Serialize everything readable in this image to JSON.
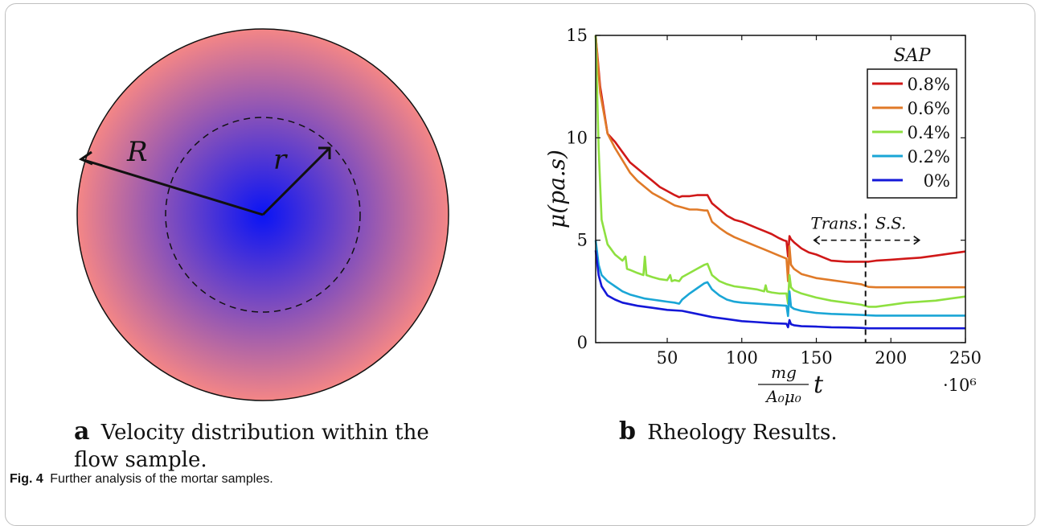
{
  "panel_a": {
    "letter": "a",
    "caption": "Velocity distribution within the flow sample.",
    "label_R": "R",
    "label_r": "r"
  },
  "panel_b": {
    "letter": "b",
    "caption": "Rheology Results."
  },
  "figure_caption": {
    "label": "Fig. 4",
    "text": "Further analysis of the mortar samples."
  },
  "colors": {
    "outer": "#f48686",
    "center": "#0a14f5",
    "s08": "#d01818",
    "s06": "#e07a28",
    "s04": "#8ee040",
    "s02": "#1aa6d6",
    "s0": "#1418d8"
  },
  "chart_data": {
    "type": "line",
    "title": "",
    "xlabel": "mg/(A₀μ₀) t",
    "ylabel": "μ(pa.s)",
    "x_multiplier": "·10⁶",
    "xlim": [
      2,
      250
    ],
    "ylim": [
      0,
      15
    ],
    "xticks": [
      50,
      100,
      150,
      200,
      250
    ],
    "yticks": [
      0,
      5,
      10,
      15
    ],
    "legend_title": "SAP",
    "legend_position": "top-right",
    "annotations": {
      "trans": "Trans.",
      "ss": "S.S.",
      "divider_x": 183
    },
    "series": [
      {
        "name": "0.8%",
        "color": "#d01818",
        "x": [
          2,
          5,
          10,
          15,
          20,
          25,
          30,
          35,
          40,
          45,
          50,
          55,
          58,
          60,
          65,
          70,
          75,
          77,
          80,
          85,
          90,
          95,
          100,
          105,
          110,
          115,
          120,
          125,
          128,
          130,
          131,
          132,
          133,
          135,
          140,
          145,
          150,
          155,
          160,
          170,
          180,
          183,
          185,
          190,
          200,
          210,
          220,
          230,
          240,
          250
        ],
        "y": [
          15,
          12.5,
          10.2,
          9.8,
          9.3,
          8.8,
          8.5,
          8.2,
          7.9,
          7.6,
          7.4,
          7.2,
          7.1,
          7.15,
          7.15,
          7.2,
          7.2,
          7.2,
          6.8,
          6.5,
          6.2,
          6.0,
          5.9,
          5.75,
          5.6,
          5.45,
          5.3,
          5.1,
          5.0,
          4.95,
          4.2,
          5.2,
          5.05,
          4.9,
          4.6,
          4.4,
          4.3,
          4.15,
          4.0,
          3.95,
          3.95,
          3.95,
          3.95,
          4.0,
          4.05,
          4.1,
          4.15,
          4.25,
          4.35,
          4.45
        ]
      },
      {
        "name": "0.6%",
        "color": "#e07a28",
        "x": [
          2,
          5,
          10,
          15,
          20,
          25,
          30,
          35,
          40,
          45,
          50,
          55,
          60,
          65,
          70,
          75,
          77,
          80,
          85,
          90,
          95,
          100,
          105,
          110,
          115,
          120,
          125,
          130,
          131,
          132,
          133,
          135,
          140,
          150,
          160,
          170,
          180,
          185,
          190,
          200,
          210,
          220,
          230,
          240,
          250
        ],
        "y": [
          15,
          12.2,
          10.2,
          9.5,
          8.9,
          8.3,
          7.9,
          7.6,
          7.3,
          7.1,
          6.9,
          6.7,
          6.6,
          6.5,
          6.5,
          6.45,
          6.45,
          5.9,
          5.6,
          5.35,
          5.15,
          5.0,
          4.85,
          4.7,
          4.55,
          4.4,
          4.25,
          4.1,
          3.0,
          4.7,
          3.8,
          3.6,
          3.35,
          3.15,
          3.05,
          2.95,
          2.85,
          2.72,
          2.7,
          2.7,
          2.7,
          2.7,
          2.7,
          2.7,
          2.7
        ]
      },
      {
        "name": "0.4%",
        "color": "#8ee040",
        "x": [
          2,
          4,
          6,
          10,
          15,
          20,
          22,
          23,
          25,
          30,
          34,
          35,
          36,
          40,
          45,
          50,
          52,
          53,
          55,
          58,
          60,
          65,
          70,
          75,
          77,
          80,
          85,
          90,
          95,
          100,
          110,
          115,
          116,
          117,
          120,
          125,
          130,
          131,
          132,
          133,
          135,
          140,
          150,
          160,
          170,
          180,
          185,
          190,
          200,
          210,
          220,
          230,
          240,
          250
        ],
        "y": [
          15,
          9.5,
          6.0,
          4.8,
          4.3,
          4.0,
          4.2,
          3.6,
          3.55,
          3.4,
          3.3,
          4.2,
          3.3,
          3.2,
          3.1,
          3.05,
          3.3,
          3.0,
          3.05,
          3.0,
          3.2,
          3.4,
          3.6,
          3.8,
          3.85,
          3.3,
          3.0,
          2.85,
          2.75,
          2.7,
          2.6,
          2.5,
          2.8,
          2.5,
          2.45,
          2.4,
          2.4,
          1.9,
          3.3,
          2.7,
          2.55,
          2.4,
          2.2,
          2.05,
          1.95,
          1.85,
          1.75,
          1.75,
          1.85,
          1.95,
          2.0,
          2.05,
          2.15,
          2.25
        ]
      },
      {
        "name": "0.2%",
        "color": "#1aa6d6",
        "x": [
          2,
          4,
          6,
          10,
          15,
          20,
          25,
          30,
          35,
          40,
          45,
          50,
          55,
          58,
          60,
          65,
          70,
          75,
          77,
          80,
          85,
          90,
          95,
          100,
          110,
          120,
          130,
          131,
          132,
          133,
          135,
          140,
          150,
          160,
          170,
          180,
          185,
          190,
          200,
          210,
          220,
          230,
          240,
          250
        ],
        "y": [
          5,
          3.8,
          3.3,
          3.0,
          2.75,
          2.5,
          2.35,
          2.25,
          2.15,
          2.1,
          2.05,
          2.0,
          1.95,
          1.9,
          2.1,
          2.4,
          2.65,
          2.9,
          2.95,
          2.6,
          2.3,
          2.1,
          2.0,
          1.95,
          1.9,
          1.85,
          1.8,
          1.3,
          2.5,
          1.75,
          1.65,
          1.55,
          1.45,
          1.4,
          1.38,
          1.35,
          1.33,
          1.32,
          1.32,
          1.32,
          1.32,
          1.32,
          1.32,
          1.32
        ]
      },
      {
        "name": "0%",
        "color": "#1418d8",
        "x": [
          2,
          4,
          6,
          10,
          15,
          20,
          30,
          40,
          50,
          60,
          70,
          80,
          90,
          100,
          110,
          120,
          130,
          131,
          132,
          133,
          135,
          140,
          150,
          160,
          170,
          180,
          185,
          190,
          200,
          210,
          220,
          230,
          240,
          250
        ],
        "y": [
          4.5,
          3.3,
          2.75,
          2.3,
          2.1,
          1.95,
          1.8,
          1.7,
          1.6,
          1.55,
          1.4,
          1.25,
          1.15,
          1.05,
          1.0,
          0.95,
          0.92,
          0.75,
          1.1,
          0.9,
          0.85,
          0.8,
          0.78,
          0.75,
          0.74,
          0.72,
          0.7,
          0.7,
          0.7,
          0.7,
          0.7,
          0.7,
          0.7,
          0.7
        ]
      }
    ]
  }
}
